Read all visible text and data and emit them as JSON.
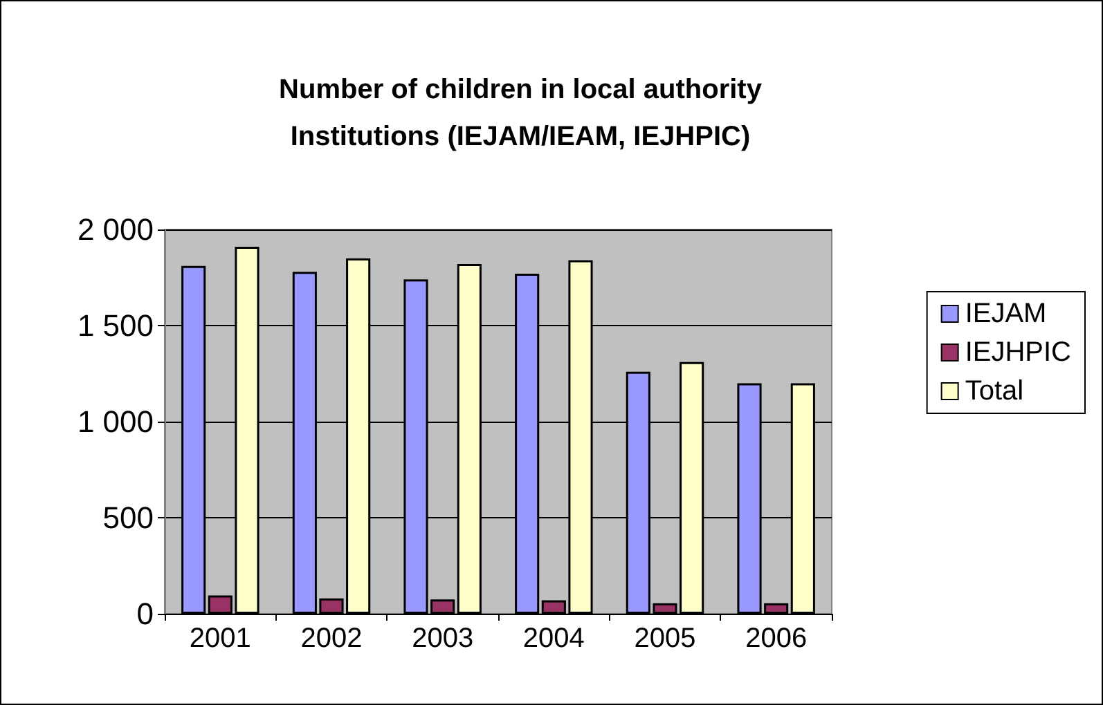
{
  "chart_data": {
    "type": "bar",
    "title": "Number of children in local authority\nInstitutions (IEJAM/IEAM, IEJHPIC)",
    "categories": [
      "2001",
      "2002",
      "2003",
      "2004",
      "2005",
      "2006"
    ],
    "series": [
      {
        "name": "IEJAM",
        "color": "#9999ff",
        "values": [
          1810,
          1780,
          1740,
          1770,
          1260,
          1200
        ]
      },
      {
        "name": "IEJHPIC",
        "color": "#993366",
        "values": [
          95,
          80,
          75,
          70,
          55,
          55
        ]
      },
      {
        "name": "Total",
        "color": "#ffffcc",
        "values": [
          1910,
          1850,
          1820,
          1840,
          1310,
          1200
        ]
      }
    ],
    "ylim": [
      0,
      2000
    ],
    "yticks": [
      {
        "value": 0,
        "label": "0"
      },
      {
        "value": 500,
        "label": "500"
      },
      {
        "value": 1000,
        "label": "1 000"
      },
      {
        "value": 1500,
        "label": "1 500"
      },
      {
        "value": 2000,
        "label": "2 000"
      }
    ],
    "grid": "y",
    "legend": "right"
  }
}
